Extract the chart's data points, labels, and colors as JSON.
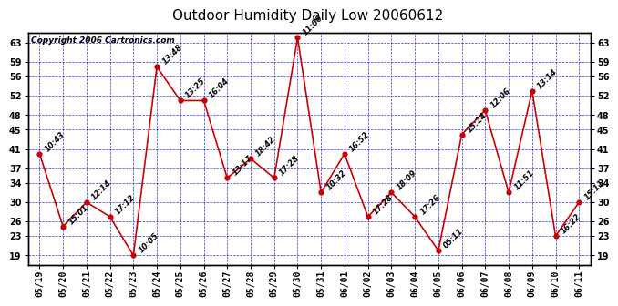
{
  "title": "Outdoor Humidity Daily Low 20060612",
  "copyright": "Copyright 2006 Cartronics.com",
  "x_labels": [
    "05/19",
    "05/20",
    "05/21",
    "05/22",
    "05/23",
    "05/24",
    "05/25",
    "05/26",
    "05/27",
    "05/28",
    "05/29",
    "05/30",
    "05/31",
    "06/01",
    "06/02",
    "06/03",
    "06/04",
    "06/05",
    "06/06",
    "06/07",
    "06/08",
    "06/09",
    "06/10",
    "06/11"
  ],
  "y_values": [
    40,
    25,
    30,
    27,
    19,
    58,
    51,
    51,
    35,
    39,
    35,
    64,
    32,
    40,
    27,
    32,
    27,
    20,
    44,
    49,
    32,
    53,
    23,
    30
  ],
  "point_labels": [
    "10:43",
    "15:01",
    "12:14",
    "17:12",
    "10:05",
    "13:48",
    "13:25",
    "16:04",
    "13:17",
    "18:42",
    "17:28",
    "11:00",
    "10:32",
    "16:52",
    "17:28",
    "18:09",
    "17:26",
    "05:11",
    "15:24",
    "12:06",
    "11:51",
    "13:14",
    "16:22",
    "15:11"
  ],
  "y_ticks": [
    19,
    23,
    26,
    30,
    34,
    37,
    41,
    45,
    48,
    52,
    56,
    59,
    63
  ],
  "y_min": 17,
  "y_max": 65,
  "line_color": "#cc0000",
  "marker_color": "#cc0000",
  "bg_color": "#ffffff",
  "plot_bg_color": "#ffffff",
  "grid_color": "#0000cc",
  "title_fontsize": 11,
  "tick_fontsize": 7,
  "label_fontsize": 6,
  "copyright_fontsize": 6.5
}
